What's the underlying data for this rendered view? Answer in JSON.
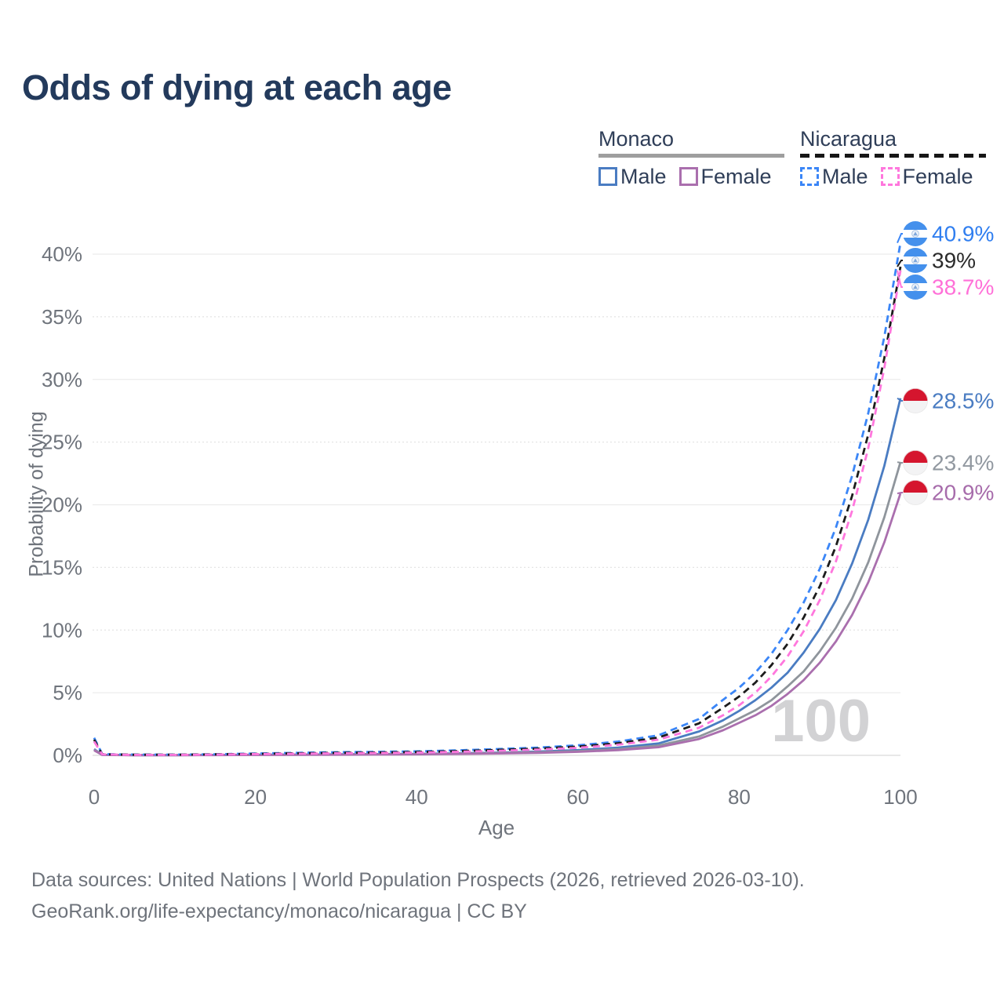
{
  "page": {
    "title": "Odds of dying at each age"
  },
  "legend": {
    "groups": [
      {
        "country": "Monaco",
        "style": "solid",
        "underline_color": "#9e9e9e",
        "items": [
          {
            "label": "Male",
            "color": "#4a7cc2",
            "dashed": false
          },
          {
            "label": "Female",
            "color": "#aa6fae",
            "dashed": false
          }
        ]
      },
      {
        "country": "Nicaragua",
        "style": "dashed",
        "underline_color": "#161616",
        "items": [
          {
            "label": "Male",
            "color": "#3b86f7",
            "dashed": true
          },
          {
            "label": "Female",
            "color": "#ff77dd",
            "dashed": true
          }
        ]
      }
    ]
  },
  "chart_data": {
    "type": "line",
    "title": "Odds of dying at each age",
    "xlabel": "Age",
    "ylabel": "Probability of dying",
    "xlim": [
      0,
      100
    ],
    "ylim": [
      0,
      42
    ],
    "grid": true,
    "watermark": "100",
    "xticks": [
      {
        "value": 0,
        "label": "0"
      },
      {
        "value": 20,
        "label": "20"
      },
      {
        "value": 40,
        "label": "40"
      },
      {
        "value": 60,
        "label": "60"
      },
      {
        "value": 80,
        "label": "80"
      },
      {
        "value": 100,
        "label": "100"
      }
    ],
    "yticks": [
      {
        "value": 0,
        "label": "0%"
      },
      {
        "value": 5,
        "label": "5%"
      },
      {
        "value": 10,
        "label": "10%"
      },
      {
        "value": 15,
        "label": "15%"
      },
      {
        "value": 20,
        "label": "20%"
      },
      {
        "value": 25,
        "label": "25%"
      },
      {
        "value": 30,
        "label": "30%"
      },
      {
        "value": 35,
        "label": "35%"
      },
      {
        "value": 40,
        "label": "40%"
      }
    ],
    "series": [
      {
        "id": "mon_male",
        "country": "Monaco",
        "sex": "Male",
        "name": "Monaco Male",
        "color": "#4a7cc2",
        "dashed": false,
        "flag": "monaco",
        "end": {
          "text": "28.5%",
          "color": "#4a7cc2"
        },
        "points": [
          [
            0,
            0.5
          ],
          [
            1,
            0.04
          ],
          [
            5,
            0.02
          ],
          [
            10,
            0.02
          ],
          [
            15,
            0.03
          ],
          [
            20,
            0.05
          ],
          [
            25,
            0.06
          ],
          [
            30,
            0.08
          ],
          [
            35,
            0.1
          ],
          [
            40,
            0.12
          ],
          [
            45,
            0.16
          ],
          [
            50,
            0.22
          ],
          [
            55,
            0.3
          ],
          [
            60,
            0.42
          ],
          [
            65,
            0.62
          ],
          [
            70,
            0.95
          ],
          [
            75,
            1.9
          ],
          [
            78,
            2.8
          ],
          [
            80,
            3.55
          ],
          [
            82,
            4.4
          ],
          [
            84,
            5.4
          ],
          [
            86,
            6.6
          ],
          [
            88,
            8.2
          ],
          [
            90,
            10.1
          ],
          [
            92,
            12.4
          ],
          [
            94,
            15.3
          ],
          [
            96,
            18.8
          ],
          [
            98,
            23.1
          ],
          [
            100,
            28.5
          ]
        ]
      },
      {
        "id": "mon_comb",
        "country": "Monaco",
        "sex": "Both",
        "name": "Monaco Combined",
        "color": "#8f959c",
        "dashed": false,
        "flag": "monaco",
        "end": {
          "text": "23.4%",
          "color": "#9198a0"
        },
        "points": [
          [
            0,
            0.45
          ],
          [
            1,
            0.035
          ],
          [
            5,
            0.018
          ],
          [
            10,
            0.018
          ],
          [
            15,
            0.025
          ],
          [
            20,
            0.04
          ],
          [
            25,
            0.05
          ],
          [
            30,
            0.07
          ],
          [
            35,
            0.085
          ],
          [
            40,
            0.1
          ],
          [
            45,
            0.13
          ],
          [
            50,
            0.18
          ],
          [
            55,
            0.25
          ],
          [
            60,
            0.34
          ],
          [
            65,
            0.5
          ],
          [
            70,
            0.78
          ],
          [
            75,
            1.5
          ],
          [
            78,
            2.3
          ],
          [
            80,
            2.95
          ],
          [
            82,
            3.6
          ],
          [
            84,
            4.4
          ],
          [
            86,
            5.5
          ],
          [
            88,
            6.7
          ],
          [
            90,
            8.3
          ],
          [
            92,
            10.2
          ],
          [
            94,
            12.5
          ],
          [
            96,
            15.4
          ],
          [
            98,
            19.0
          ],
          [
            100,
            23.4
          ]
        ]
      },
      {
        "id": "mon_female",
        "country": "Monaco",
        "sex": "Female",
        "name": "Monaco Female",
        "color": "#aa6fae",
        "dashed": false,
        "flag": "monaco",
        "end": {
          "text": "20.9%",
          "color": "#a76cab"
        },
        "points": [
          [
            0,
            0.4
          ],
          [
            1,
            0.03
          ],
          [
            5,
            0.015
          ],
          [
            10,
            0.015
          ],
          [
            15,
            0.02
          ],
          [
            20,
            0.03
          ],
          [
            25,
            0.04
          ],
          [
            30,
            0.05
          ],
          [
            35,
            0.065
          ],
          [
            40,
            0.08
          ],
          [
            45,
            0.11
          ],
          [
            50,
            0.15
          ],
          [
            55,
            0.2
          ],
          [
            60,
            0.28
          ],
          [
            65,
            0.42
          ],
          [
            70,
            0.65
          ],
          [
            75,
            1.3
          ],
          [
            78,
            2.0
          ],
          [
            80,
            2.6
          ],
          [
            82,
            3.2
          ],
          [
            84,
            3.95
          ],
          [
            86,
            4.9
          ],
          [
            88,
            6.0
          ],
          [
            90,
            7.4
          ],
          [
            92,
            9.1
          ],
          [
            94,
            11.2
          ],
          [
            96,
            13.8
          ],
          [
            98,
            17.0
          ],
          [
            100,
            20.9
          ]
        ]
      },
      {
        "id": "nic_male",
        "country": "Nicaragua",
        "sex": "Male",
        "name": "Nicaragua Male",
        "color": "#3b86f7",
        "dashed": true,
        "flag": "nicaragua",
        "end": {
          "text": "40.9%",
          "color": "#2f7ef0"
        },
        "points": [
          [
            0,
            1.4
          ],
          [
            1,
            0.1
          ],
          [
            5,
            0.06
          ],
          [
            10,
            0.06
          ],
          [
            15,
            0.09
          ],
          [
            20,
            0.15
          ],
          [
            25,
            0.2
          ],
          [
            30,
            0.25
          ],
          [
            35,
            0.28
          ],
          [
            40,
            0.32
          ],
          [
            45,
            0.4
          ],
          [
            50,
            0.5
          ],
          [
            55,
            0.62
          ],
          [
            60,
            0.8
          ],
          [
            65,
            1.1
          ],
          [
            70,
            1.6
          ],
          [
            75,
            2.9
          ],
          [
            78,
            4.43
          ],
          [
            80,
            5.4
          ],
          [
            82,
            6.6
          ],
          [
            84,
            8.1
          ],
          [
            86,
            10.0
          ],
          [
            88,
            12.2
          ],
          [
            90,
            14.9
          ],
          [
            92,
            18.2
          ],
          [
            94,
            22.3
          ],
          [
            96,
            27.3
          ],
          [
            98,
            33.4
          ],
          [
            100,
            40.9
          ]
        ]
      },
      {
        "id": "nic_comb",
        "country": "Nicaragua",
        "sex": "Both",
        "name": "Nicaragua Combined",
        "color": "#1c1c1c",
        "dashed": true,
        "flag": "nicaragua",
        "end": {
          "text": "39%",
          "color": "#2a2a2a"
        },
        "points": [
          [
            0,
            1.25
          ],
          [
            1,
            0.09
          ],
          [
            5,
            0.05
          ],
          [
            10,
            0.05
          ],
          [
            15,
            0.08
          ],
          [
            20,
            0.12
          ],
          [
            25,
            0.16
          ],
          [
            30,
            0.2
          ],
          [
            35,
            0.23
          ],
          [
            40,
            0.27
          ],
          [
            45,
            0.34
          ],
          [
            50,
            0.43
          ],
          [
            55,
            0.54
          ],
          [
            60,
            0.7
          ],
          [
            65,
            0.97
          ],
          [
            70,
            1.42
          ],
          [
            75,
            2.55
          ],
          [
            78,
            3.8
          ],
          [
            80,
            4.7
          ],
          [
            82,
            5.8
          ],
          [
            84,
            7.2
          ],
          [
            86,
            8.9
          ],
          [
            88,
            11.0
          ],
          [
            90,
            13.5
          ],
          [
            92,
            16.7
          ],
          [
            94,
            20.7
          ],
          [
            96,
            25.6
          ],
          [
            98,
            31.7
          ],
          [
            100,
            39.0
          ]
        ]
      },
      {
        "id": "nic_female",
        "country": "Nicaragua",
        "sex": "Female",
        "name": "Nicaragua Female",
        "color": "#ff77dd",
        "dashed": true,
        "flag": "nicaragua",
        "end": {
          "text": "38.7%",
          "color": "#ff70d8"
        },
        "points": [
          [
            0,
            1.1
          ],
          [
            1,
            0.08
          ],
          [
            5,
            0.04
          ],
          [
            10,
            0.04
          ],
          [
            15,
            0.06
          ],
          [
            20,
            0.1
          ],
          [
            25,
            0.13
          ],
          [
            30,
            0.16
          ],
          [
            35,
            0.19
          ],
          [
            40,
            0.22
          ],
          [
            45,
            0.28
          ],
          [
            50,
            0.36
          ],
          [
            55,
            0.46
          ],
          [
            60,
            0.6
          ],
          [
            65,
            0.85
          ],
          [
            70,
            1.25
          ],
          [
            75,
            2.2
          ],
          [
            78,
            3.2
          ],
          [
            80,
            4.0
          ],
          [
            82,
            5.0
          ],
          [
            84,
            6.3
          ],
          [
            86,
            7.9
          ],
          [
            88,
            9.9
          ],
          [
            90,
            12.4
          ],
          [
            92,
            15.5
          ],
          [
            94,
            19.5
          ],
          [
            96,
            24.5
          ],
          [
            98,
            30.9
          ],
          [
            100,
            38.7
          ]
        ]
      }
    ],
    "flag_colors": {
      "nicaragua_blue": "#4490ec",
      "monaco_red": "#d5152e",
      "flag_white": "#f3f3f4"
    }
  },
  "footer": {
    "line1": "Data sources: United Nations | World Population Prospects (2026, retrieved 2026-03-10).",
    "line2": "GeoRank.org/life-expectancy/monaco/nicaragua | CC BY"
  }
}
